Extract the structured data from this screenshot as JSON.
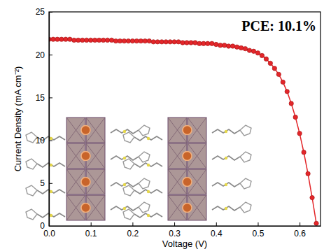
{
  "chart_data": {
    "type": "line",
    "annotation": "PCE: 10.1%",
    "x_label": "Voltage (V)",
    "y_label": "Current Density (mA cm⁻²)",
    "x": [
      0,
      0.01,
      0.02,
      0.03,
      0.04,
      0.05,
      0.06,
      0.07,
      0.08,
      0.09,
      0.1,
      0.11,
      0.12,
      0.13,
      0.14,
      0.15,
      0.16,
      0.17,
      0.18,
      0.19,
      0.2,
      0.21,
      0.22,
      0.23,
      0.24,
      0.25,
      0.26,
      0.27,
      0.28,
      0.29,
      0.3,
      0.31,
      0.32,
      0.33,
      0.34,
      0.35,
      0.36,
      0.37,
      0.38,
      0.39,
      0.4,
      0.41,
      0.42,
      0.43,
      0.44,
      0.45,
      0.46,
      0.47,
      0.48,
      0.49,
      0.5,
      0.51,
      0.52,
      0.53,
      0.54,
      0.55,
      0.56,
      0.57,
      0.58,
      0.59,
      0.6,
      0.61,
      0.62,
      0.63,
      0.64
    ],
    "series": [
      {
        "color": "#e3262a",
        "marker": "circle",
        "line_style": "solid",
        "values": [
          21.8,
          21.8,
          21.8,
          21.8,
          21.8,
          21.8,
          21.7,
          21.7,
          21.7,
          21.7,
          21.7,
          21.7,
          21.7,
          21.7,
          21.7,
          21.7,
          21.6,
          21.6,
          21.6,
          21.6,
          21.6,
          21.6,
          21.6,
          21.6,
          21.6,
          21.5,
          21.5,
          21.5,
          21.5,
          21.5,
          21.5,
          21.5,
          21.4,
          21.4,
          21.4,
          21.4,
          21.3,
          21.3,
          21.3,
          21.3,
          21.2,
          21.1,
          21.1,
          21.0,
          21.0,
          20.9,
          20.8,
          20.7,
          20.5,
          20.4,
          20.2,
          19.9,
          19.5,
          19.0,
          18.4,
          17.7,
          16.8,
          15.7,
          14.3,
          12.7,
          10.8,
          8.6,
          6.1,
          3.3,
          0.3
        ]
      }
    ],
    "xlim": [
      0,
      0.65
    ],
    "xticks": [
      {
        "value": 0,
        "label": "0.0"
      },
      0.1,
      0.2,
      0.3,
      0.4,
      0.5,
      0.6
    ],
    "ylim": [
      0,
      25
    ],
    "yticks": [
      0,
      5,
      10,
      15,
      20,
      25
    ],
    "grid": false
  }
}
